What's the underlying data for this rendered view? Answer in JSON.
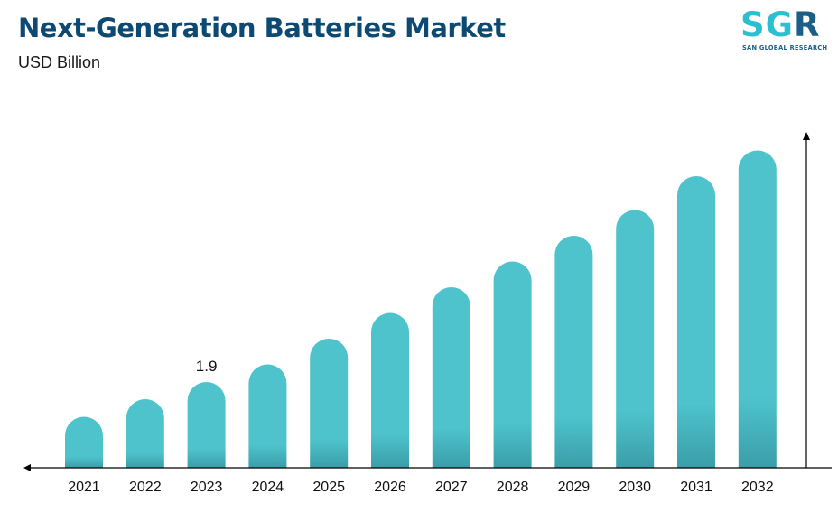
{
  "header": {
    "title": "Next-Generation Batteries Market",
    "subtitle": "USD Billion"
  },
  "logo": {
    "letters": "SGR",
    "tagline": "SAN GLOBAL RESEARCH"
  },
  "colors": {
    "bar_top": "#4ec3cc",
    "bar_bottom": "#3aa3ad",
    "title": "#0d4a73",
    "axis": "#000000"
  },
  "chart_data": {
    "type": "bar",
    "title": "Next-Generation Batteries Market",
    "ylabel": "USD Billion",
    "categories": [
      "2021",
      "2022",
      "2023",
      "2024",
      "2025",
      "2026",
      "2027",
      "2028",
      "2029",
      "2030",
      "2031",
      "2032"
    ],
    "values": [
      1.13,
      1.52,
      1.9,
      2.29,
      2.86,
      3.43,
      4.0,
      4.57,
      5.14,
      5.71,
      6.46,
      7.03
    ],
    "data_labels": [
      {
        "category": "2023",
        "text": "1.9"
      }
    ],
    "ylim": [
      0,
      7.4
    ],
    "grid": false,
    "legend": "none"
  }
}
